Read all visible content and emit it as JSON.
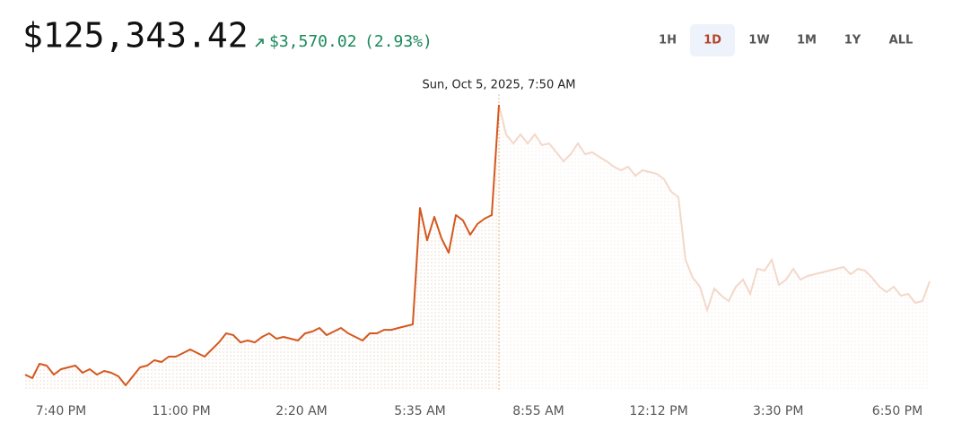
{
  "header": {
    "price": "$125,343.42",
    "change": "$3,570.02",
    "change_percent": "(2.93%)"
  },
  "ranges": {
    "options": [
      "1H",
      "1D",
      "1W",
      "1M",
      "1Y",
      "ALL"
    ],
    "selected": "1D"
  },
  "chart_data": {
    "type": "line",
    "tooltip": "Sun, Oct 5, 2025, 7:50 AM",
    "color": "#d4581f",
    "faded_color": "#f3d8ca",
    "categories": [
      null,
      null,
      null,
      null,
      null,
      null,
      null,
      null,
      null,
      null,
      null,
      null,
      null,
      null,
      null,
      null,
      null,
      null,
      null,
      null,
      null,
      null,
      null,
      null,
      null,
      null,
      null,
      null,
      null,
      null,
      null,
      null,
      null,
      null,
      null,
      null,
      null,
      null,
      null,
      null,
      null,
      null,
      null,
      null,
      null,
      null,
      null,
      null,
      null,
      null,
      null,
      null,
      null,
      null,
      null,
      null,
      null,
      null,
      null,
      null,
      null,
      null,
      null,
      null,
      null,
      null,
      null,
      null,
      null,
      null,
      null,
      null,
      null,
      null,
      null,
      null,
      null,
      null,
      null,
      null,
      null,
      null,
      null,
      null,
      null,
      null,
      null,
      null,
      null,
      null,
      null,
      null,
      null,
      null,
      null,
      null,
      null,
      null,
      null,
      null,
      null,
      null,
      null,
      null,
      null,
      null,
      null,
      null,
      null,
      null,
      null,
      null,
      null,
      null,
      null,
      null,
      null,
      null,
      null,
      null,
      null,
      null,
      null,
      null,
      null,
      null,
      null
    ],
    "values": [
      121773,
      121726,
      121916,
      121892,
      121773,
      121845,
      121868,
      121892,
      121797,
      121845,
      121773,
      121821,
      121797,
      121750,
      121631,
      121750,
      121868,
      121892,
      121963,
      121940,
      122011,
      122011,
      122058,
      122106,
      122058,
      122011,
      122106,
      122200,
      122319,
      122295,
      122200,
      122224,
      122200,
      122272,
      122319,
      122248,
      122272,
      122248,
      122224,
      122319,
      122343,
      122390,
      122295,
      122343,
      122390,
      122319,
      122272,
      122224,
      122319,
      122319,
      122366,
      122366,
      122390,
      122414,
      122438,
      123979,
      123552,
      123861,
      123576,
      123386,
      123885,
      123813,
      123624,
      123766,
      123837,
      123885,
      125343.42,
      124952,
      124833,
      124952,
      124833,
      124952,
      124810,
      124833,
      124715,
      124596,
      124691,
      124833,
      124691,
      124715,
      124655,
      124596,
      124525,
      124478,
      124525,
      124406,
      124478,
      124454,
      124430,
      124359,
      124193,
      124122,
      123292,
      123054,
      122936,
      122627,
      122912,
      122817,
      122746,
      122936,
      123031,
      122841,
      123173,
      123149,
      123292,
      122960,
      123031,
      123173,
      123031,
      123078,
      123102,
      123126,
      123149,
      123173,
      123197,
      123102,
      123173,
      123149,
      123054,
      122936,
      122865,
      122936,
      122817,
      122841,
      122722,
      122746,
      123007
    ],
    "ylim": [
      121572,
      125486
    ],
    "xticks": [
      {
        "value": 5,
        "label": "7:40 PM"
      },
      {
        "value": 21.75,
        "label": "11:00 PM"
      },
      {
        "value": 38.5,
        "label": "2:20 AM"
      },
      {
        "value": 55,
        "label": "5:35 AM"
      },
      {
        "value": 71.5,
        "label": "8:55 AM"
      },
      {
        "value": 88.25,
        "label": "12:12 PM"
      },
      {
        "value": 104.9,
        "label": "3:30 PM"
      },
      {
        "value": 121.5,
        "label": "6:50 PM"
      }
    ]
  }
}
